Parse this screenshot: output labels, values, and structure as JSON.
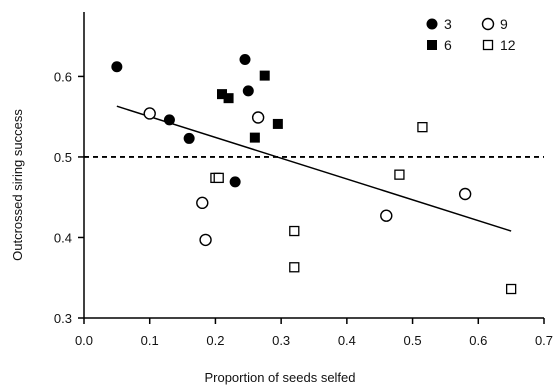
{
  "chart_data": {
    "type": "scatter",
    "title": "",
    "xlabel": "Proportion of seeds selfed",
    "ylabel": "Outcrossed siring success",
    "xlim": [
      0.0,
      0.7
    ],
    "ylim": [
      0.3,
      0.68
    ],
    "xticks": [
      "0.0",
      "0.1",
      "0.2",
      "0.3",
      "0.4",
      "0.5",
      "0.6",
      "0.7"
    ],
    "yticks": [
      "0.3",
      "0.4",
      "0.5",
      "0.6"
    ],
    "grid": false,
    "legend_position": "top-right",
    "series": [
      {
        "name": "3",
        "marker": "filled-circle",
        "points": [
          [
            0.05,
            0.612
          ],
          [
            0.13,
            0.546
          ],
          [
            0.16,
            0.523
          ],
          [
            0.23,
            0.469
          ],
          [
            0.245,
            0.621
          ],
          [
            0.25,
            0.582
          ]
        ]
      },
      {
        "name": "6",
        "marker": "filled-square",
        "points": [
          [
            0.21,
            0.578
          ],
          [
            0.22,
            0.573
          ],
          [
            0.26,
            0.524
          ],
          [
            0.275,
            0.601
          ],
          [
            0.295,
            0.541
          ]
        ]
      },
      {
        "name": "9",
        "marker": "open-circle",
        "points": [
          [
            0.1,
            0.554
          ],
          [
            0.18,
            0.443
          ],
          [
            0.185,
            0.397
          ],
          [
            0.265,
            0.549
          ],
          [
            0.46,
            0.427
          ],
          [
            0.58,
            0.454
          ]
        ]
      },
      {
        "name": "12",
        "marker": "open-square",
        "points": [
          [
            0.2,
            0.474
          ],
          [
            0.205,
            0.474
          ],
          [
            0.32,
            0.408
          ],
          [
            0.32,
            0.363
          ],
          [
            0.48,
            0.478
          ],
          [
            0.515,
            0.537
          ],
          [
            0.65,
            0.336
          ]
        ]
      }
    ],
    "reference_line": {
      "y": 0.5,
      "style": "dashed"
    },
    "regression_line": {
      "x": [
        0.05,
        0.65
      ],
      "y": [
        0.563,
        0.408
      ]
    },
    "colors": {
      "marker": "#000000",
      "background": "#ffffff"
    }
  }
}
